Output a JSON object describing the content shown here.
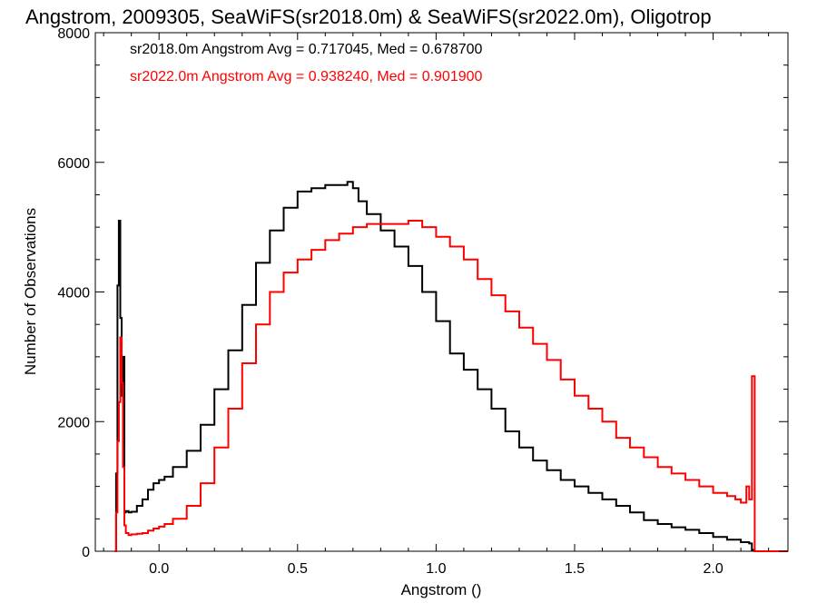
{
  "chart_data": {
    "type": "line",
    "title": "Angstrom, 2009305, SeaWiFS(sr2018.0m) & SeaWiFS(sr2022.0m), Oligotrop",
    "xlabel": "Angstrom ()",
    "ylabel": "Number of Observations",
    "xlim": [
      -0.23,
      2.27
    ],
    "ylim": [
      0,
      8000
    ],
    "xticks": [
      0.0,
      0.5,
      1.0,
      1.5,
      2.0
    ],
    "xtick_labels": [
      "0.0",
      "0.5",
      "1.0",
      "1.5",
      "2.0"
    ],
    "yticks": [
      0,
      2000,
      4000,
      6000,
      8000
    ],
    "ytick_labels": [
      "0",
      "2000",
      "4000",
      "6000",
      "8000"
    ],
    "grid": false,
    "step": true,
    "annotations": [
      {
        "text": "sr2018.0m Angstrom Avg = 0.717045, Med = 0.678700",
        "color": "#000000"
      },
      {
        "text": "sr2022.0m Angstrom Avg = 0.938240, Med = 0.901900",
        "color": "#ff0000"
      }
    ],
    "series": [
      {
        "color": "#000000",
        "x": [
          -0.16,
          -0.155,
          -0.15,
          -0.145,
          -0.14,
          -0.135,
          -0.13,
          -0.125,
          -0.12,
          -0.11,
          -0.1,
          -0.08,
          -0.06,
          -0.04,
          -0.02,
          0.0,
          0.02,
          0.05,
          0.1,
          0.15,
          0.2,
          0.25,
          0.3,
          0.35,
          0.4,
          0.45,
          0.5,
          0.55,
          0.6,
          0.65,
          0.68,
          0.7,
          0.72,
          0.75,
          0.8,
          0.85,
          0.9,
          0.95,
          1.0,
          1.05,
          1.1,
          1.15,
          1.2,
          1.25,
          1.3,
          1.35,
          1.4,
          1.45,
          1.5,
          1.55,
          1.6,
          1.65,
          1.7,
          1.75,
          1.8,
          1.85,
          1.9,
          1.95,
          2.0,
          2.05,
          2.1,
          2.13,
          2.14,
          2.15,
          2.2,
          2.27
        ],
        "y": [
          0,
          1200,
          4100,
          5100,
          3600,
          2400,
          3000,
          600,
          620,
          600,
          610,
          700,
          800,
          950,
          1050,
          1100,
          1150,
          1300,
          1550,
          1950,
          2500,
          3100,
          3800,
          4450,
          4950,
          5300,
          5550,
          5600,
          5650,
          5650,
          5700,
          5600,
          5400,
          5200,
          4950,
          4700,
          4400,
          4000,
          3550,
          3050,
          2800,
          2500,
          2200,
          1850,
          1600,
          1400,
          1250,
          1100,
          1000,
          900,
          800,
          700,
          600,
          480,
          420,
          370,
          330,
          280,
          220,
          180,
          140,
          120,
          20,
          0,
          0,
          0
        ],
        "name": ""
      },
      {
        "color": "#ff0000",
        "x": [
          -0.16,
          -0.155,
          -0.15,
          -0.145,
          -0.14,
          -0.135,
          -0.13,
          -0.125,
          -0.12,
          -0.11,
          -0.1,
          -0.08,
          -0.06,
          -0.04,
          -0.02,
          0.0,
          0.02,
          0.05,
          0.1,
          0.15,
          0.2,
          0.25,
          0.3,
          0.35,
          0.4,
          0.45,
          0.5,
          0.55,
          0.6,
          0.65,
          0.7,
          0.75,
          0.8,
          0.85,
          0.9,
          0.95,
          1.0,
          1.05,
          1.1,
          1.15,
          1.2,
          1.25,
          1.3,
          1.35,
          1.4,
          1.45,
          1.5,
          1.55,
          1.6,
          1.65,
          1.7,
          1.75,
          1.8,
          1.85,
          1.9,
          1.95,
          2.0,
          2.05,
          2.08,
          2.1,
          2.12,
          2.13,
          2.14,
          2.15,
          2.2,
          2.27
        ],
        "y": [
          0,
          600,
          1700,
          2300,
          3300,
          2600,
          1300,
          400,
          280,
          250,
          260,
          270,
          280,
          320,
          350,
          380,
          420,
          500,
          700,
          1050,
          1600,
          2200,
          2900,
          3500,
          4000,
          4300,
          4500,
          4650,
          4800,
          4900,
          5000,
          5050,
          5050,
          5050,
          5100,
          5000,
          4850,
          4700,
          4500,
          4200,
          3950,
          3700,
          3450,
          3200,
          2950,
          2650,
          2400,
          2200,
          2000,
          1750,
          1600,
          1450,
          1300,
          1200,
          1100,
          1000,
          900,
          850,
          800,
          750,
          1000,
          800,
          2700,
          0,
          0,
          0
        ],
        "name": ""
      }
    ]
  }
}
